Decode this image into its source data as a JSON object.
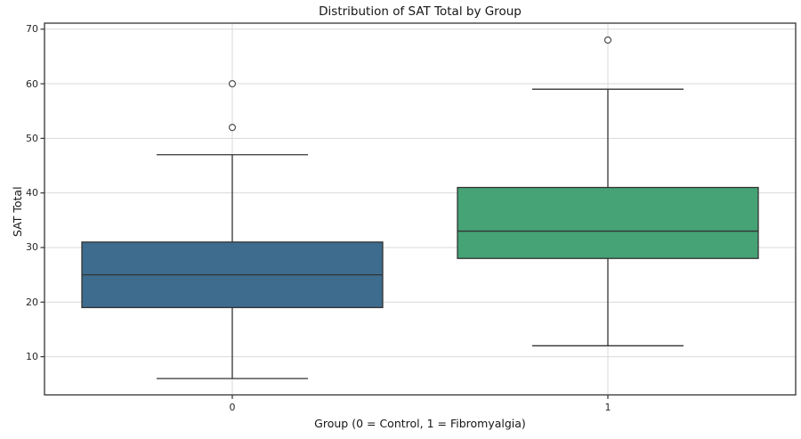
{
  "figure": {
    "background": "#ffffff"
  },
  "chart_data": {
    "type": "box",
    "title": "Distribution of SAT Total by Group",
    "xlabel": "Group (0 = Control, 1 = Fibromyalgia)",
    "ylabel": "SAT Total",
    "categories": [
      "0",
      "1"
    ],
    "yticks": [
      10,
      20,
      30,
      40,
      50,
      60,
      70
    ],
    "ylim": [
      3.0,
      71.1
    ],
    "grid": true,
    "legend": false,
    "series": [
      {
        "group": "0",
        "name": "Control",
        "color": "#3E6C8E",
        "whisker_low": 6,
        "q1": 19,
        "median": 25,
        "q3": 31,
        "whisker_high": 47,
        "outliers": [
          52,
          60
        ]
      },
      {
        "group": "1",
        "name": "Fibromyalgia",
        "color": "#45A376",
        "whisker_low": 12,
        "q1": 28,
        "median": 33,
        "q3": 41,
        "whisker_high": 59,
        "outliers": [
          68
        ]
      }
    ],
    "colors": {
      "spine": "#333333",
      "grid": "#d9d9d9",
      "box_edge": "#333333",
      "median": "#333333",
      "whisker": "#333333",
      "flier_edge": "#4d4d4d",
      "flier_fill": "#ffffff",
      "text": "#151515"
    }
  }
}
